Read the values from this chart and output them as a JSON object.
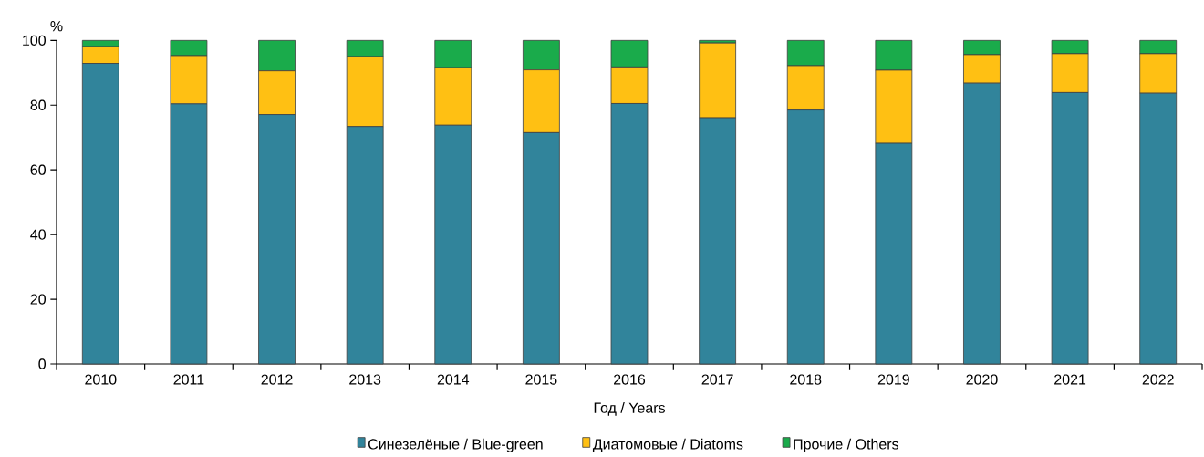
{
  "chart_data": {
    "type": "bar",
    "stacked": true,
    "ylabel": "%",
    "xlabel": "Год / Years",
    "categories": [
      "2010",
      "2011",
      "2012",
      "2013",
      "2014",
      "2015",
      "2016",
      "2017",
      "2018",
      "2019",
      "2020",
      "2021",
      "2022"
    ],
    "series": [
      {
        "name": "Синезелёные / Blue-green",
        "color": "#31849b",
        "values": [
          92.9,
          80.4,
          77.1,
          73.4,
          73.8,
          71.5,
          80.5,
          76.1,
          78.5,
          68.2,
          86.8,
          83.9,
          83.7
        ]
      },
      {
        "name": "Диатомовые / Diatoms",
        "color": "#ffc013",
        "values": [
          5.2,
          14.9,
          13.5,
          21.6,
          17.8,
          19.4,
          11.3,
          23.1,
          13.7,
          22.6,
          8.8,
          12.0,
          12.2
        ]
      },
      {
        "name": "Прочие / Others",
        "color": "#1aab4b",
        "values": [
          1.9,
          4.7,
          9.4,
          5.0,
          8.4,
          9.1,
          8.2,
          0.8,
          7.8,
          9.2,
          4.4,
          4.1,
          4.1
        ]
      }
    ],
    "ylim": [
      0,
      100
    ],
    "yticks": [
      0,
      20,
      40,
      60,
      80,
      100
    ],
    "grid": false,
    "legend": "bottom"
  }
}
